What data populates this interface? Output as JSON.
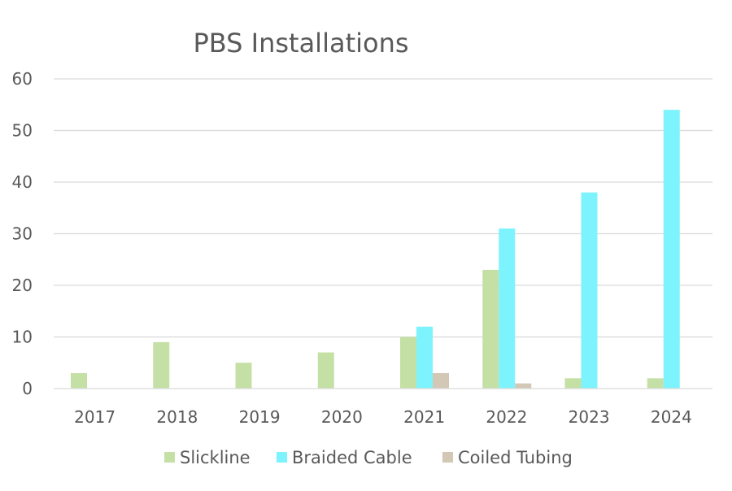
{
  "chart_data": {
    "type": "bar",
    "title": "PBS Installations",
    "xlabel": "",
    "ylabel": "",
    "categories": [
      "2017",
      "2018",
      "2019",
      "2020",
      "2021",
      "2022",
      "2023",
      "2024"
    ],
    "ylim": [
      0,
      60
    ],
    "yticks": [
      0,
      10,
      20,
      30,
      40,
      50,
      60
    ],
    "grid": true,
    "legend_position": "bottom",
    "series": [
      {
        "name": "Slickline",
        "color": "#c5e0a5",
        "values": [
          3,
          9,
          5,
          7,
          10,
          23,
          2,
          2
        ]
      },
      {
        "name": "Braided Cable",
        "color": "#7df3fd",
        "values": [
          0,
          0,
          0,
          0,
          12,
          31,
          38,
          54
        ]
      },
      {
        "name": "Coiled Tubing",
        "color": "#d3c7b6",
        "values": [
          0,
          0,
          0,
          0,
          3,
          1,
          0,
          0
        ]
      }
    ]
  }
}
